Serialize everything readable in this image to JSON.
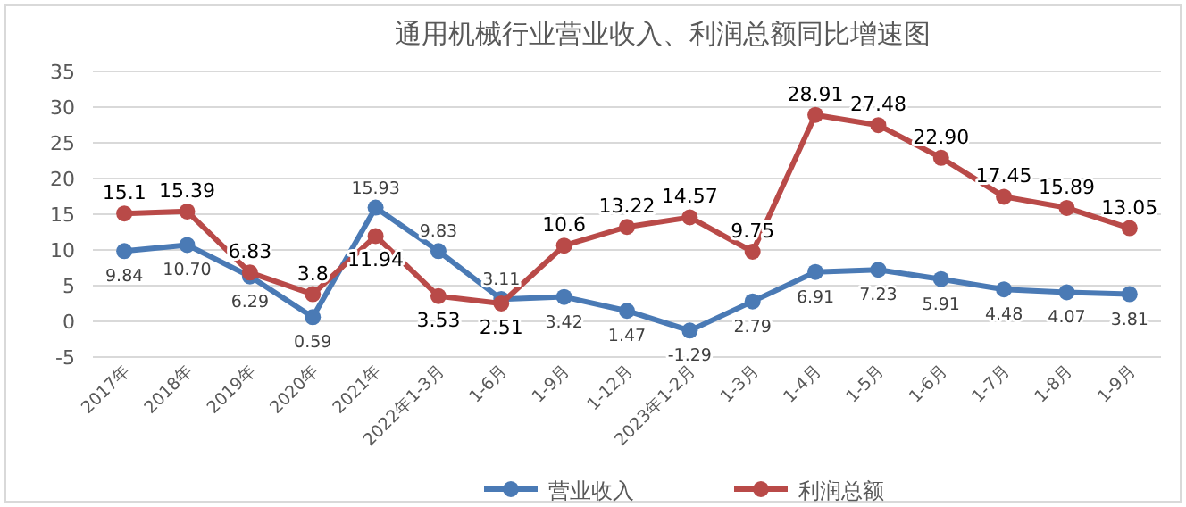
{
  "chart_data": {
    "type": "line",
    "title": "通用机械行业营业收入、利润总额同比增速图",
    "categories": [
      "2017年",
      "2018年",
      "2019年",
      "2020年",
      "2021年",
      "2022年1-3月",
      "1-6月",
      "1-9月",
      "1-12月",
      "2023年1-2月",
      "1-3月",
      "1-4月",
      "1-5月",
      "1-6月",
      "1-7月",
      "1-8月",
      "1-9月"
    ],
    "series": [
      {
        "name": "营业收入",
        "color": "#4a7ab5",
        "values": [
          9.84,
          10.7,
          6.29,
          0.59,
          15.93,
          9.83,
          3.11,
          3.42,
          1.47,
          -1.29,
          2.79,
          6.91,
          7.23,
          5.91,
          4.48,
          4.07,
          3.81
        ],
        "value_labels": [
          "9.84",
          "10.70",
          "6.29",
          "0.59",
          "15.93",
          "9.83",
          "3.11",
          "3.42",
          "1.47",
          "-1.29",
          "2.79",
          "6.91",
          "7.23",
          "5.91",
          "4.48",
          "4.07",
          "3.81"
        ]
      },
      {
        "name": "利润总额",
        "color": "#b94a48",
        "values": [
          15.1,
          15.39,
          6.83,
          3.8,
          11.94,
          3.53,
          2.51,
          10.6,
          13.22,
          14.57,
          9.75,
          28.91,
          27.48,
          22.9,
          17.45,
          15.89,
          13.05
        ],
        "value_labels": [
          "15.1",
          "15.39",
          "6.83",
          "3.8",
          "11.94",
          "3.53",
          "2.51",
          "10.6",
          "13.22",
          "14.57",
          "9.75",
          "28.91",
          "27.48",
          "22.90",
          "17.45",
          "15.89",
          "13.05"
        ]
      }
    ],
    "ylim": [
      -5,
      35
    ],
    "yticks": [
      -5,
      0,
      5,
      10,
      15,
      20,
      25,
      30,
      35
    ],
    "grid": "y",
    "legend": "bottom",
    "marker": "circle",
    "line_style": "solid"
  }
}
